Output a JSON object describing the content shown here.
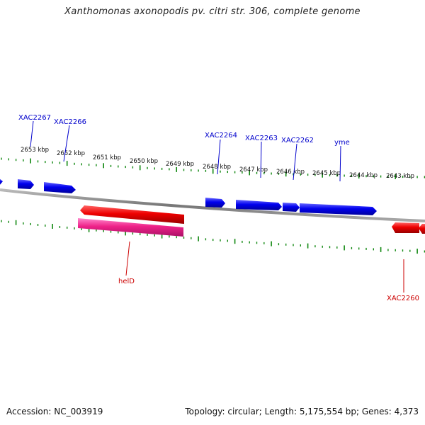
{
  "title": "Xanthomonas axonopodis pv. citri str. 306, complete genome",
  "footer": {
    "accession": "Accession: NC_003919",
    "topology": "Topology: circular; Length: 5,175,554 bp; Genes: 4,373"
  },
  "colors": {
    "forward": "#0000ee",
    "reverse": "#ee0000",
    "rna": "#ee2288",
    "ticks": "#118811",
    "backbone": "#888888"
  },
  "position_labels": [
    "2653 kbp",
    "2652 kbp",
    "2651 kbp",
    "2650 kbp",
    "2649 kbp",
    "2648 kbp",
    "2647 kbp",
    "2646 kbp",
    "2645 kbp",
    "2644 kbp",
    "2643 kbp"
  ],
  "gene_labels": {
    "forward": [
      "XAC2267",
      "XAC2266",
      "XAC2264",
      "XAC2263",
      "XAC2262",
      "yme"
    ],
    "reverse": [
      "helD",
      "XAC2260"
    ]
  }
}
